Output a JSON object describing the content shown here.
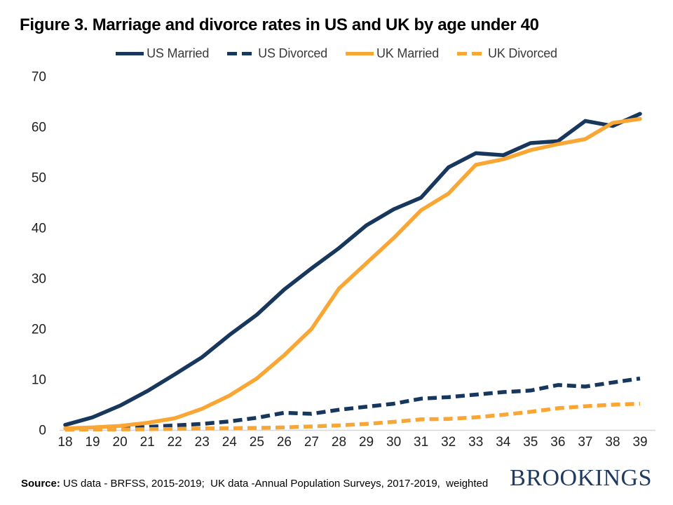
{
  "title": "Figure 3. Marriage and divorce rates in US and UK by age under 40",
  "colors": {
    "navy": "#17375D",
    "orange": "#FAA634",
    "axis_line": "#D6D6D6",
    "tick_text": "#212121",
    "brand_navy": "#203A60"
  },
  "chart_data": {
    "type": "line",
    "x": [
      18,
      19,
      20,
      21,
      22,
      23,
      24,
      25,
      26,
      27,
      28,
      29,
      30,
      31,
      32,
      33,
      34,
      35,
      36,
      37,
      38,
      39
    ],
    "x_tick_labels": [
      "18",
      "19",
      "20",
      "21",
      "22",
      "23",
      "24",
      "25",
      "26",
      "27",
      "28",
      "29",
      "30",
      "31",
      "32",
      "33",
      "34",
      "35",
      "36",
      "37",
      "38",
      "39"
    ],
    "yticks": [
      0,
      10,
      20,
      30,
      40,
      50,
      60,
      70
    ],
    "ylim": [
      0,
      70
    ],
    "xlabel": "",
    "ylabel": "",
    "grid": false,
    "legend_position": "top",
    "series": [
      {
        "name": "US Married",
        "color": "#17375D",
        "style": "solid",
        "values": [
          1,
          2.5,
          4.8,
          7.7,
          11,
          14.4,
          18.8,
          22.8,
          27.8,
          32,
          36,
          40.5,
          43.7,
          46,
          52,
          54.8,
          54.4,
          56.8,
          57.2,
          61.2,
          60.2,
          62.6
        ]
      },
      {
        "name": "US Divorced",
        "color": "#17375D",
        "style": "dashed",
        "values": [
          0.1,
          0.2,
          0.3,
          0.6,
          0.9,
          1.2,
          1.7,
          2.4,
          3.4,
          3.2,
          4,
          4.6,
          5.2,
          6.2,
          6.5,
          7,
          7.5,
          7.8,
          8.9,
          8.6,
          9.4,
          10.2
        ]
      },
      {
        "name": "UK Married",
        "color": "#FAA634",
        "style": "solid",
        "values": [
          0.3,
          0.5,
          0.8,
          1.4,
          2.3,
          4.2,
          6.8,
          10.2,
          14.8,
          20,
          28,
          33,
          38,
          43.5,
          46.8,
          52.5,
          53.6,
          55.4,
          56.6,
          57.6,
          60.8,
          61.6
        ]
      },
      {
        "name": "UK Divorced",
        "color": "#FAA634",
        "style": "dashed",
        "values": [
          0.05,
          0.1,
          0.1,
          0.15,
          0.2,
          0.3,
          0.35,
          0.4,
          0.5,
          0.7,
          0.9,
          1.2,
          1.6,
          2.1,
          2.2,
          2.5,
          3,
          3.6,
          4.3,
          4.7,
          5,
          5.2
        ]
      }
    ]
  },
  "footer": {
    "source_label": "Source:",
    "source_text": " US data - BRFSS, 2015-2019;  UK data -Annual Population Surveys, 2017-2019,  weighted",
    "brand": "BROOKINGS"
  }
}
